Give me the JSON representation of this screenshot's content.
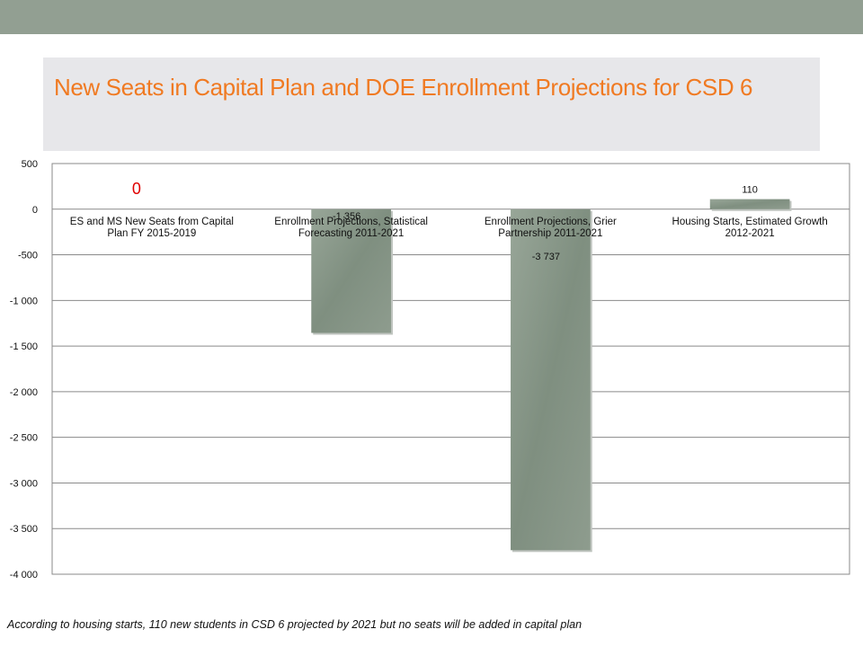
{
  "header": {
    "accent_color": "#929f92",
    "title": "New Seats in Capital Plan and DOE Enrollment Projections for CSD 6"
  },
  "chart_data": {
    "type": "bar",
    "categories": [
      "ES and MS New Seats from Capital Plan FY 2015-2019",
      "Enrollment Projections, Statistical Forecasting 2011-2021",
      "Enrollment Projections, Grier Partnership 2011-2021",
      "Housing Starts, Estimated Growth 2012-2021"
    ],
    "category_lines": [
      [
        "ES and MS New Seats from Capital",
        "Plan FY 2015-2019"
      ],
      [
        "Enrollment Projections, Statistical",
        "Forecasting 2011-2021"
      ],
      [
        "Enrollment Projections, Grier",
        "Partnership 2011-2021"
      ],
      [
        "Housing Starts, Estimated Growth",
        "2012-2021"
      ]
    ],
    "values": [
      0,
      -1356,
      -3737,
      110
    ],
    "data_labels": [
      "0",
      "-1 356",
      "-3 737",
      "110"
    ],
    "ylim": [
      -4000,
      500
    ],
    "yticks": [
      500,
      0,
      -500,
      -1000,
      -1500,
      -2000,
      -2500,
      -3000,
      -3500,
      -4000
    ],
    "ytick_labels": [
      "500",
      "0",
      "-500",
      "-1 000",
      "-1 500",
      "-2 000",
      "-2 500",
      "-3 000",
      "-3 500",
      "-4 000"
    ],
    "grid": true,
    "bar_color": "#869586",
    "highlight_label_color": "#e00000"
  },
  "footnote": "According to housing starts, 110 new students in CSD 6 projected by 2021 but no seats will be added in capital plan"
}
